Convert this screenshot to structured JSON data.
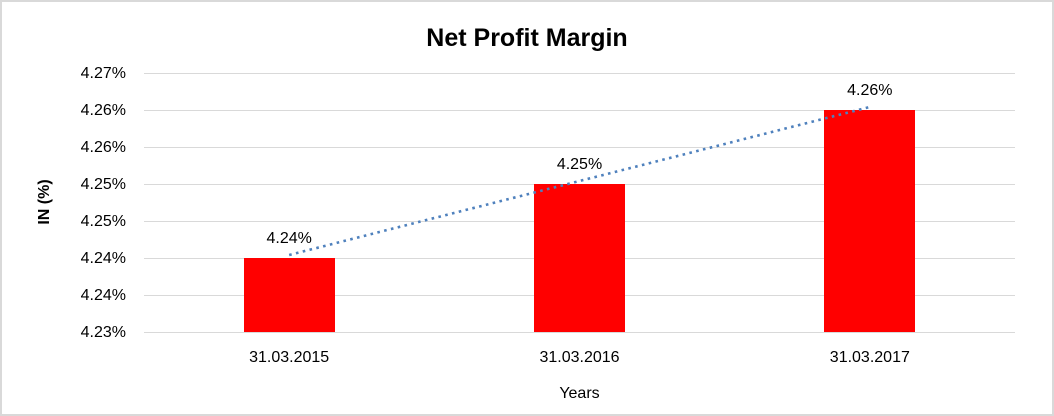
{
  "chart": {
    "title": "Net Profit Margin",
    "xlabel": "Years",
    "ylabel": "IN (%)"
  },
  "chart_data": {
    "type": "bar",
    "title": "Net Profit Margin",
    "xlabel": "Years",
    "ylabel": "IN (%)",
    "categories": [
      "31.03.2015",
      "31.03.2016",
      "31.03.2017"
    ],
    "values": [
      4.24,
      4.25,
      4.26
    ],
    "data_labels": [
      "4.24%",
      "4.25%",
      "4.26%"
    ],
    "y_tick_labels": [
      "4.27%",
      "4.26%",
      "4.26%",
      "4.25%",
      "4.25%",
      "4.24%",
      "4.24%",
      "4.23%"
    ],
    "ylim": [
      4.23,
      4.265
    ],
    "grid": true,
    "legend": false,
    "trendline": {
      "type": "linear",
      "style": "dotted",
      "values": [
        4.24,
        4.25,
        4.26
      ]
    },
    "colors": {
      "bar": "#ff0000",
      "gridline": "#d9d9d9",
      "trendline": "#4f81bd",
      "text": "#000000",
      "border": "#d9d9d9"
    }
  }
}
